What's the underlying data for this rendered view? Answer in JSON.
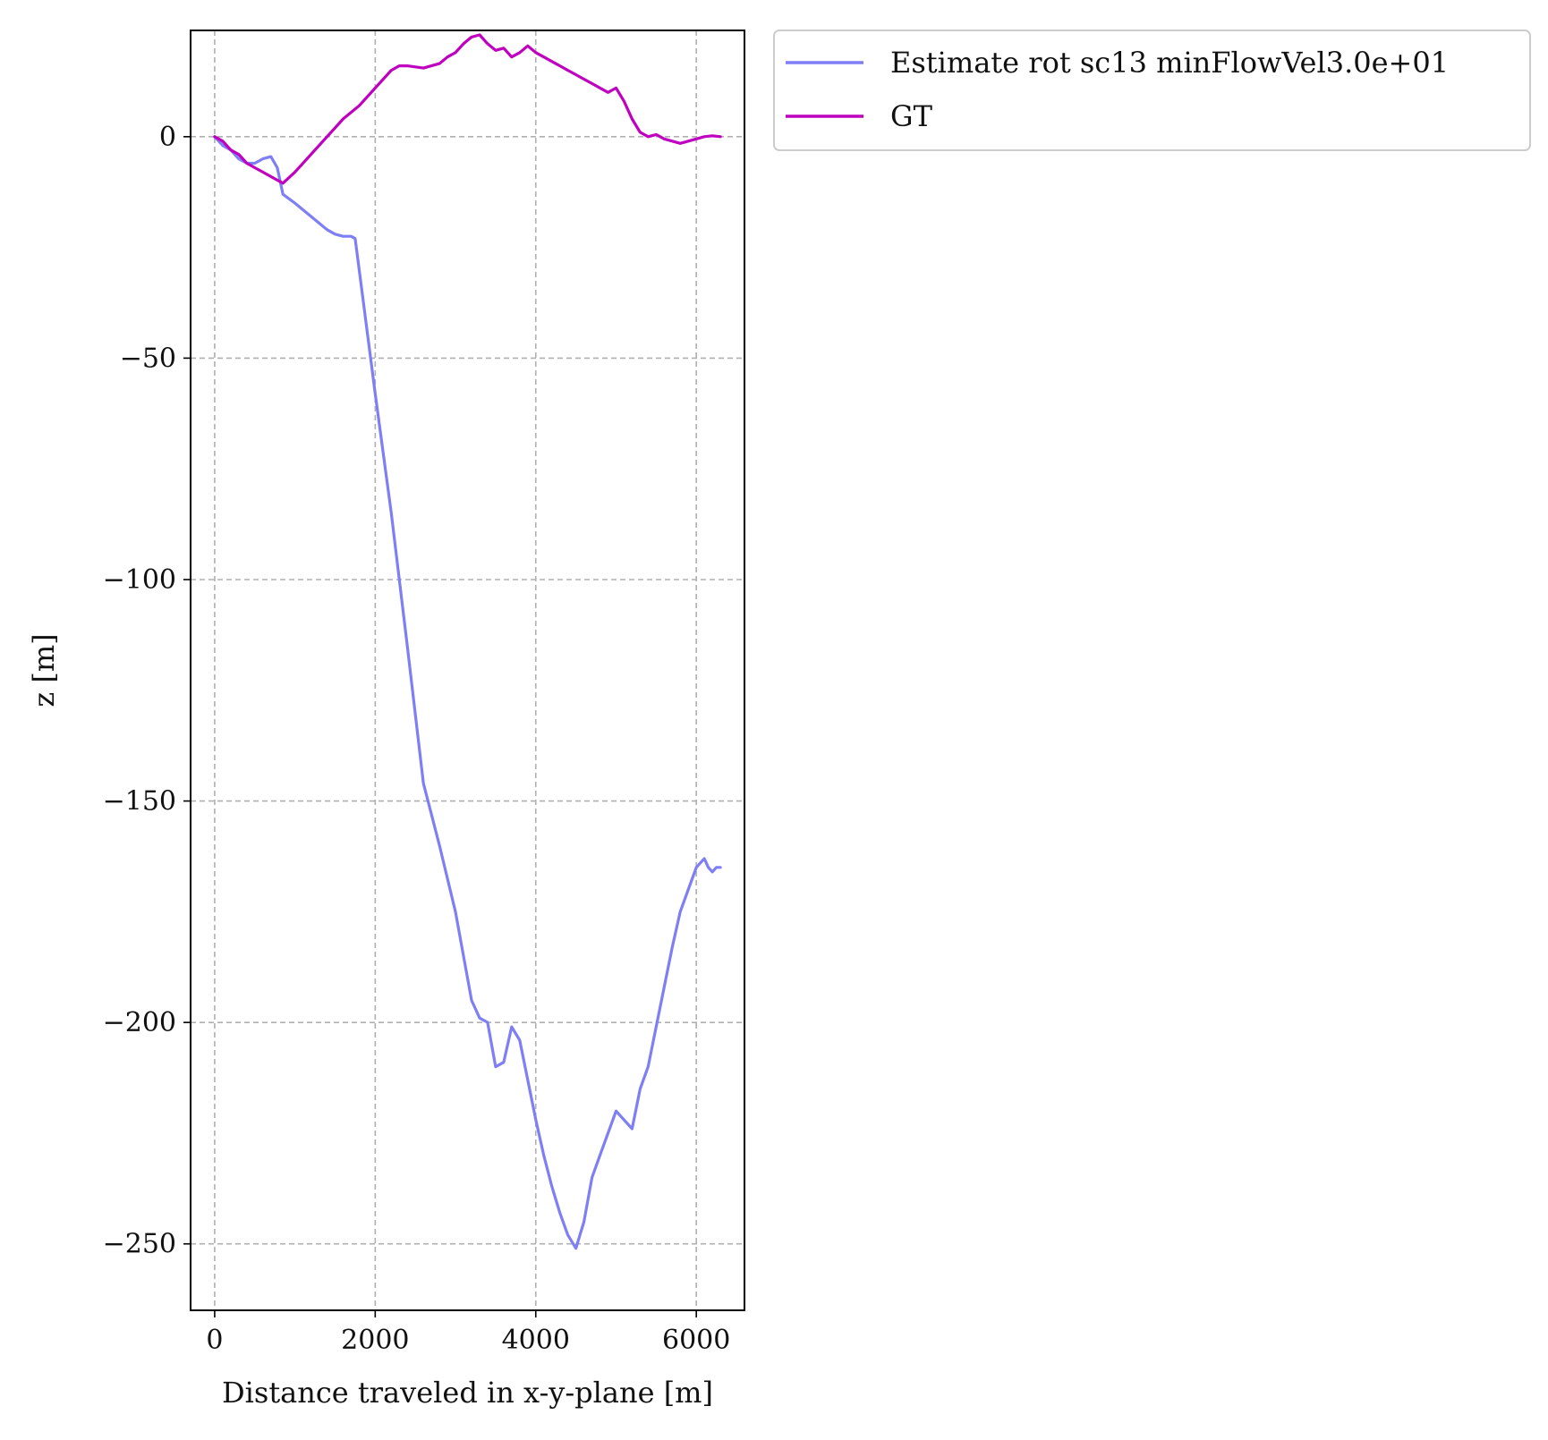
{
  "chart_data": {
    "type": "line",
    "title": "",
    "xlabel": "Distance traveled in x-y-plane [m]",
    "ylabel": "z [m]",
    "xlim": [
      -300,
      6600
    ],
    "ylim": [
      -265,
      24
    ],
    "xticks": [
      0,
      2000,
      4000,
      6000
    ],
    "yticks": [
      0,
      -50,
      -100,
      -150,
      -200,
      -250
    ],
    "xtick_labels": [
      "0",
      "2000",
      "4000",
      "6000"
    ],
    "ytick_labels": [
      "0",
      "−50",
      "−100",
      "−150",
      "−200",
      "−250"
    ],
    "grid": true,
    "legend_position": "outside-upper-right",
    "series": [
      {
        "name": "Estimate rot sc13 minFlowVel3.0e+01",
        "color": "#7f7ff5",
        "x": [
          0,
          100,
          200,
          300,
          400,
          500,
          600,
          700,
          780,
          850,
          1000,
          1200,
          1400,
          1500,
          1600,
          1700,
          1750,
          1800,
          2000,
          2200,
          2400,
          2600,
          2800,
          3000,
          3100,
          3200,
          3300,
          3400,
          3500,
          3600,
          3700,
          3800,
          3900,
          4000,
          4100,
          4200,
          4300,
          4400,
          4500,
          4600,
          4700,
          4800,
          4900,
          5000,
          5100,
          5200,
          5300,
          5400,
          5500,
          5600,
          5700,
          5800,
          5900,
          6000,
          6100,
          6150,
          6200,
          6250,
          6300
        ],
        "y": [
          0,
          -2,
          -3,
          -5,
          -6,
          -6,
          -5,
          -4.5,
          -7,
          -13,
          -15,
          -18,
          -21,
          -22,
          -22.5,
          -22.5,
          -23,
          -30,
          -58,
          -85,
          -115,
          -146,
          -160,
          -175,
          -185,
          -195,
          -199,
          -200,
          -210,
          -209,
          -201,
          -204,
          -213,
          -222,
          -230,
          -237,
          -243,
          -248,
          -251,
          -245,
          -235,
          -230,
          -225,
          -220,
          -222,
          -224,
          -215,
          -210,
          -201,
          -192,
          -183,
          -175,
          -170,
          -165,
          -163,
          -165,
          -166,
          -165,
          -165
        ],
        "line_width": 3.2
      },
      {
        "name": "GT",
        "color": "#bf00bf",
        "x": [
          0,
          100,
          200,
          300,
          400,
          500,
          600,
          700,
          800,
          850,
          1000,
          1200,
          1400,
          1500,
          1600,
          1800,
          2000,
          2200,
          2300,
          2400,
          2600,
          2800,
          2900,
          3000,
          3100,
          3200,
          3300,
          3400,
          3500,
          3600,
          3700,
          3800,
          3900,
          4000,
          4100,
          4200,
          4300,
          4400,
          4500,
          4600,
          4700,
          4800,
          4900,
          5000,
          5100,
          5200,
          5300,
          5400,
          5500,
          5600,
          5700,
          5800,
          5900,
          6000,
          6100,
          6200,
          6300
        ],
        "y": [
          0,
          -1,
          -3,
          -4,
          -6,
          -7,
          -8,
          -9,
          -10,
          -10.5,
          -8,
          -4,
          0,
          2,
          4,
          7,
          11,
          15,
          16,
          16,
          15.5,
          16.5,
          18,
          19,
          21,
          22.5,
          23,
          21,
          19.5,
          20,
          18,
          19,
          20.5,
          19,
          18,
          17,
          16,
          15,
          14,
          13,
          12,
          11,
          10,
          11,
          8,
          4,
          1,
          0,
          0.5,
          -0.5,
          -1,
          -1.5,
          -1,
          -0.5,
          0,
          0.2,
          0
        ],
        "line_width": 3.2
      }
    ]
  }
}
